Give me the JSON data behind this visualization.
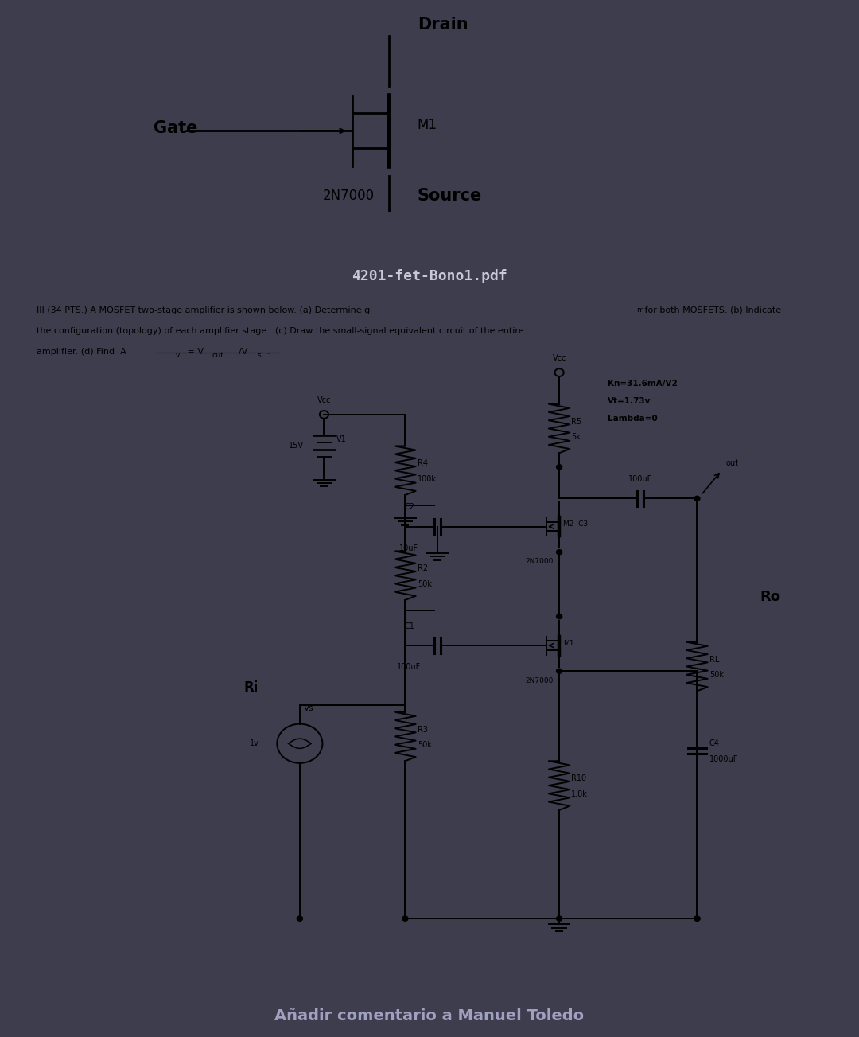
{
  "bg_color": "#3d3d4d",
  "panel1_bg": "#ffffff",
  "panel2_bg": "#ffffff",
  "header_bar_color": "#555566",
  "title_top": "4201-fet-Bono1.pdf",
  "title_top_color": "#c8c8d8",
  "problem_line1": "III (34 PTS.) A MOSFET two-stage amplifier is shown below. (a) Determine g",
  "problem_line1b": "m",
  "problem_line1c": " for both MOSFETS. (b) Indicate",
  "problem_line2": "the configuration (topology) of each amplifier stage.  (c) Draw the small-signal equivalent circuit of the entire",
  "problem_line3": "amplifier. (d) Find  A",
  "problem_line3b": "v",
  "problem_line3c": " = V",
  "problem_line3d": "out",
  "problem_line3e": "/V",
  "problem_line3f": "s",
  "footer_text": "Añadir comentario a Manuel Toledo",
  "footer_text_color": "#a0a0c0",
  "line_color": "#000000",
  "kn_text": "Kn=31.6mA/V2",
  "vt_text": "Vt=1.73v",
  "lambda_text": "Lambda=0"
}
